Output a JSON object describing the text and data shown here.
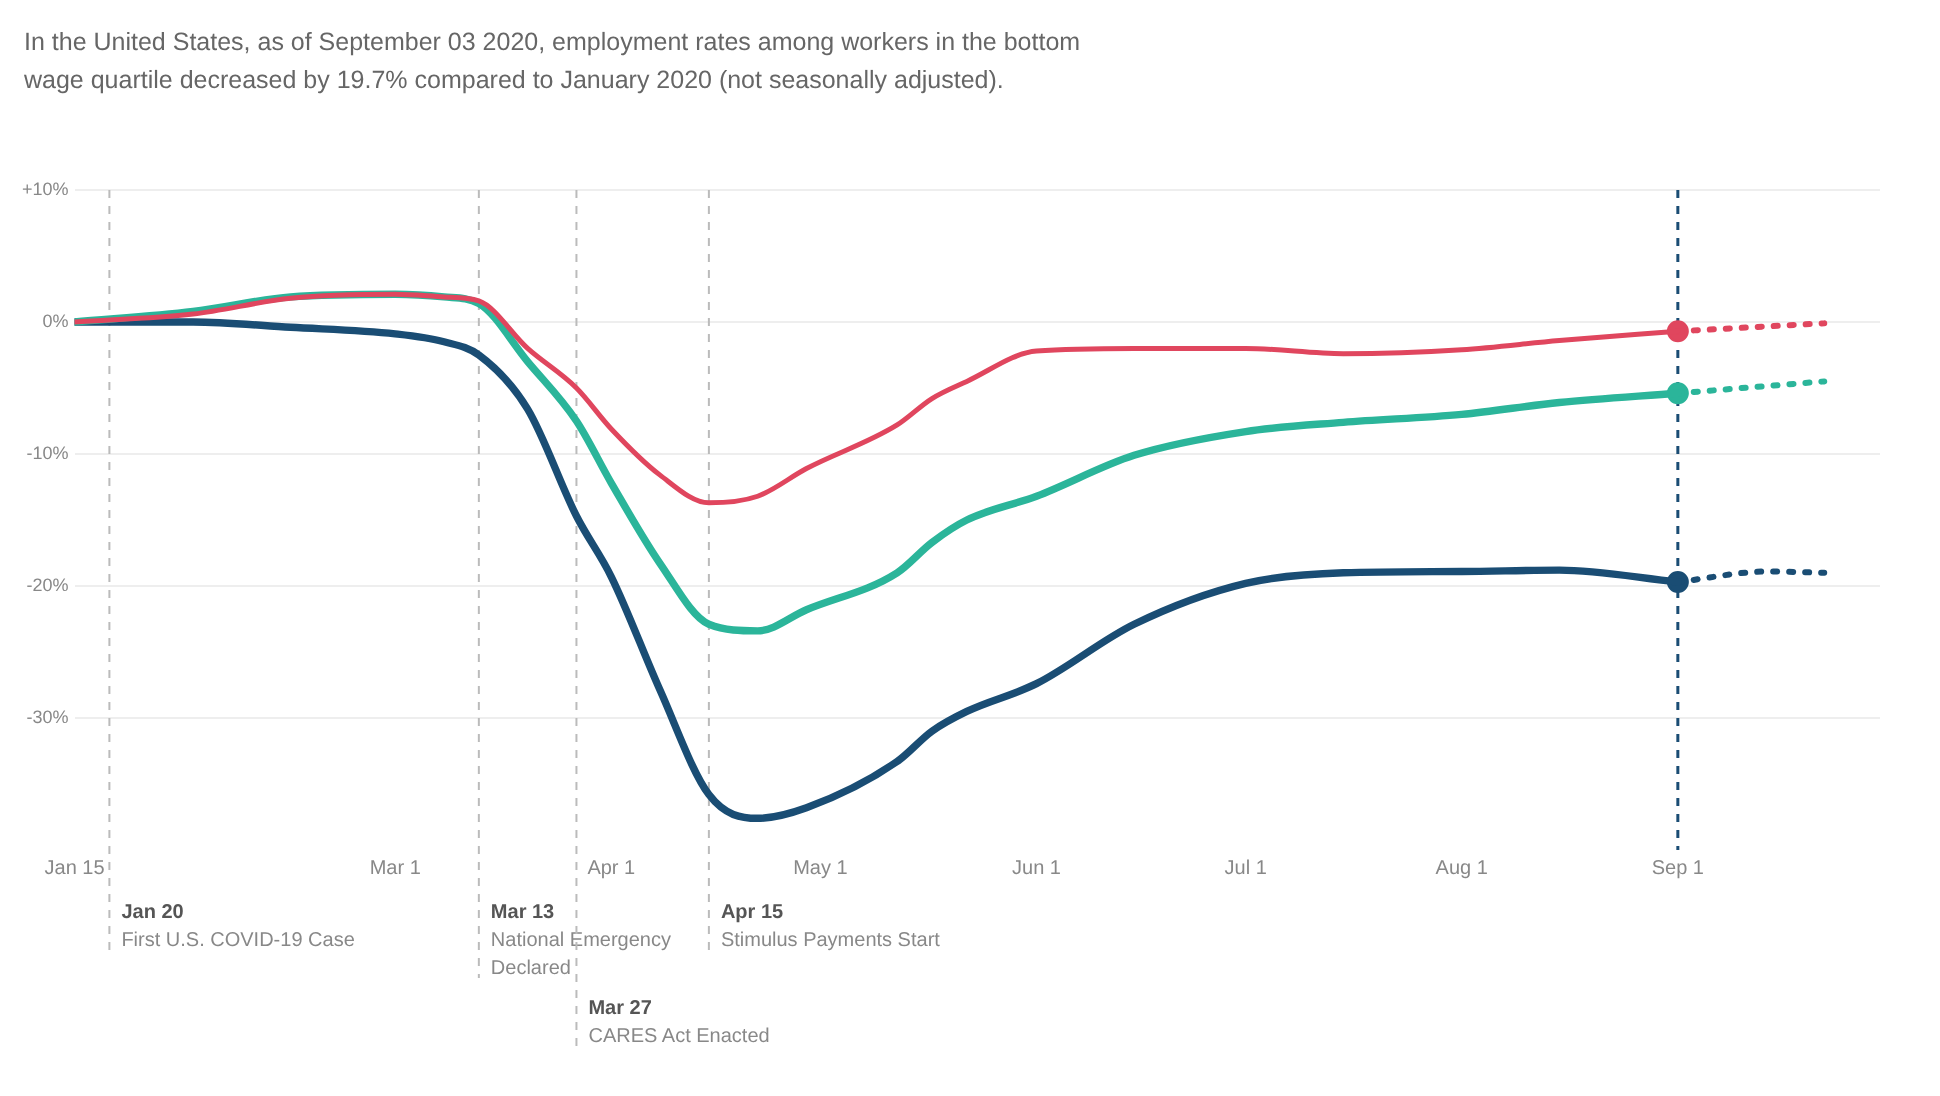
{
  "chart_data": {
    "type": "line",
    "title": "In the United States, as of September 03 2020, employment rates among workers in the bottom wage quartile decreased by 19.7% compared to January 2020 (not seasonally adjusted).",
    "x": [
      "2020-01-15",
      "2020-02-01",
      "2020-02-15",
      "2020-03-01",
      "2020-03-08",
      "2020-03-13",
      "2020-03-20",
      "2020-03-27",
      "2020-04-01",
      "2020-04-08",
      "2020-04-15",
      "2020-04-22",
      "2020-04-29",
      "2020-05-12",
      "2020-05-17",
      "2020-05-22",
      "2020-06-01",
      "2020-06-15",
      "2020-07-01",
      "2020-07-15",
      "2020-08-01",
      "2020-08-15",
      "2020-09-01"
    ],
    "series": [
      {
        "color": "#e0465e",
        "line_style": "solid",
        "values": [
          0,
          0.6,
          1.8,
          2.1,
          1.9,
          1.6,
          -2.0,
          -5.0,
          -8.1,
          -11.6,
          -13.7,
          -13.2,
          -11.1,
          -7.8,
          -5.8,
          -4.5,
          -2.2,
          -2.0,
          -2.0,
          -2.4,
          -2.1,
          -1.4,
          -0.7
        ]
      },
      {
        "color": "#2bb59a",
        "line_style": "solid",
        "values": [
          0,
          0.8,
          1.9,
          2.1,
          1.9,
          1.4,
          -3.0,
          -7.5,
          -12.2,
          -18.3,
          -22.9,
          -23.4,
          -21.8,
          -19.0,
          -16.7,
          -15.0,
          -13.2,
          -10.1,
          -8.3,
          -7.6,
          -7.0,
          -6.1,
          -5.4
        ]
      },
      {
        "color": "#1a4d74",
        "line_style": "solid",
        "values": [
          0,
          0,
          -0.4,
          -0.9,
          -1.5,
          -2.5,
          -6.6,
          -14.7,
          -19.3,
          -27.9,
          -35.8,
          -37.6,
          -36.8,
          -33.3,
          -31.0,
          -29.5,
          -27.4,
          -22.9,
          -19.8,
          -19.0,
          -18.9,
          -18.8,
          -19.7
        ]
      },
      {
        "color": "#e0465e",
        "line_style": "dotted",
        "x": [
          "2020-09-01",
          "2020-09-22"
        ],
        "values": [
          -0.7,
          -0.1
        ]
      },
      {
        "color": "#2bb59a",
        "line_style": "dotted",
        "x": [
          "2020-09-01",
          "2020-09-22"
        ],
        "values": [
          -5.4,
          -4.5
        ]
      },
      {
        "color": "#1a4d74",
        "line_style": "dotted",
        "x": [
          "2020-09-01",
          "2020-09-14",
          "2020-09-22"
        ],
        "values": [
          -19.7,
          -18.9,
          -19.0
        ]
      },
      {
        "type": "scatter",
        "marker": "circle",
        "colors": [
          "#e0465e",
          "#2bb59a",
          "#1a4d74"
        ],
        "x": [
          "2020-09-01",
          "2020-09-01",
          "2020-09-01"
        ],
        "values": [
          -0.7,
          -5.4,
          -19.7
        ]
      }
    ],
    "xlim": [
      "2020-01-15",
      "2020-09-30"
    ],
    "xticks": [
      {
        "value": "2020-01-15",
        "label": "Jan 15"
      },
      {
        "value": "2020-03-01",
        "label": "Mar 1"
      },
      {
        "value": "2020-04-01",
        "label": "Apr 1"
      },
      {
        "value": "2020-05-01",
        "label": "May 1"
      },
      {
        "value": "2020-06-01",
        "label": "Jun 1"
      },
      {
        "value": "2020-07-01",
        "label": "Jul 1"
      },
      {
        "value": "2020-08-01",
        "label": "Aug 1"
      },
      {
        "value": "2020-09-01",
        "label": "Sep 1"
      }
    ],
    "ylim": [
      -40,
      10
    ],
    "yticks": [
      {
        "value": 10,
        "label": "+10%"
      },
      {
        "value": 0,
        "label": "0%"
      },
      {
        "value": -10,
        "label": "-10%"
      },
      {
        "value": -20,
        "label": "-20%"
      },
      {
        "value": -30,
        "label": "-30%"
      }
    ],
    "grid": "y",
    "legend": false,
    "ref_lines": [
      {
        "axis": "x",
        "value": "2020-01-20",
        "label": "Jan 20\nFirst U.S. COVID-19 Case",
        "color": "#bbbbbb",
        "line_style": "dashed"
      },
      {
        "axis": "x",
        "value": "2020-03-13",
        "label": "Mar 13\nNational Emergency Declared",
        "color": "#bbbbbb",
        "line_style": "dashed"
      },
      {
        "axis": "x",
        "value": "2020-03-27",
        "label": "Mar 27\nCARES Act Enacted",
        "color": "#bbbbbb",
        "line_style": "dashed"
      },
      {
        "axis": "x",
        "value": "2020-04-15",
        "label": "Apr 15\nStimulus Payments Start",
        "color": "#bbbbbb",
        "line_style": "dashed"
      },
      {
        "axis": "x",
        "value": "2020-09-01",
        "color": "#1a4d74",
        "line_style": "dashed"
      }
    ]
  }
}
